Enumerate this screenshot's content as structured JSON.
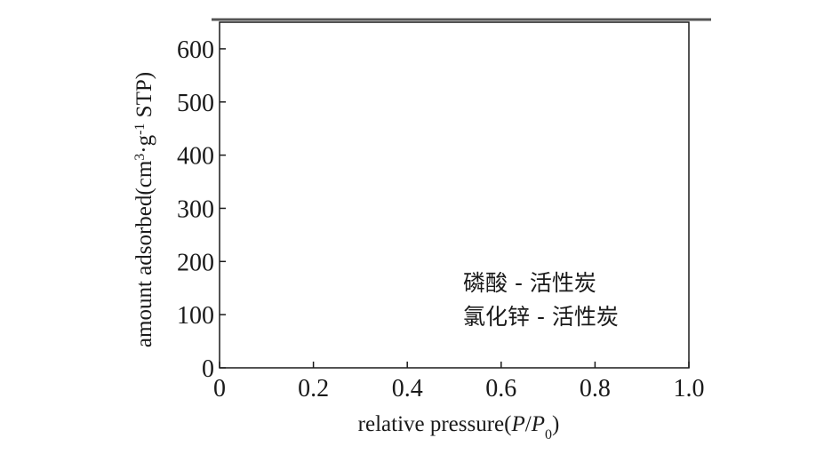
{
  "chart_data": {
    "type": "line",
    "title": "",
    "xlabel": "relative pressure(P/P0)",
    "xlabel_parts": {
      "prefix": "relative pressure(",
      "p": "P",
      "slash": "/",
      "p0_main": "P",
      "p0_sub": "0",
      "suffix": ")"
    },
    "ylabel": "amount adsorbed(cm3·g-1 STP)",
    "ylabel_parts": {
      "prefix": "amount adsorbed(cm",
      "sup1": "3",
      "mid": "·g",
      "sup2": "-1",
      "suffix": " STP)"
    },
    "xlim": [
      0,
      1.0
    ],
    "ylim": [
      0,
      650
    ],
    "x_ticks": [
      "0",
      "0.2",
      "0.4",
      "0.6",
      "0.8",
      "1.0"
    ],
    "y_ticks": [
      "0",
      "100",
      "200",
      "300",
      "400",
      "500",
      "600"
    ],
    "grid": false,
    "legend_position": "lower-right",
    "series": [
      {
        "name": "磷酸 - 活性炭",
        "color": "#1a1a1a",
        "x": [],
        "y": []
      },
      {
        "name": "氯化锌 - 活性炭",
        "color": "#1a1a1a",
        "x": [],
        "y": []
      }
    ]
  }
}
